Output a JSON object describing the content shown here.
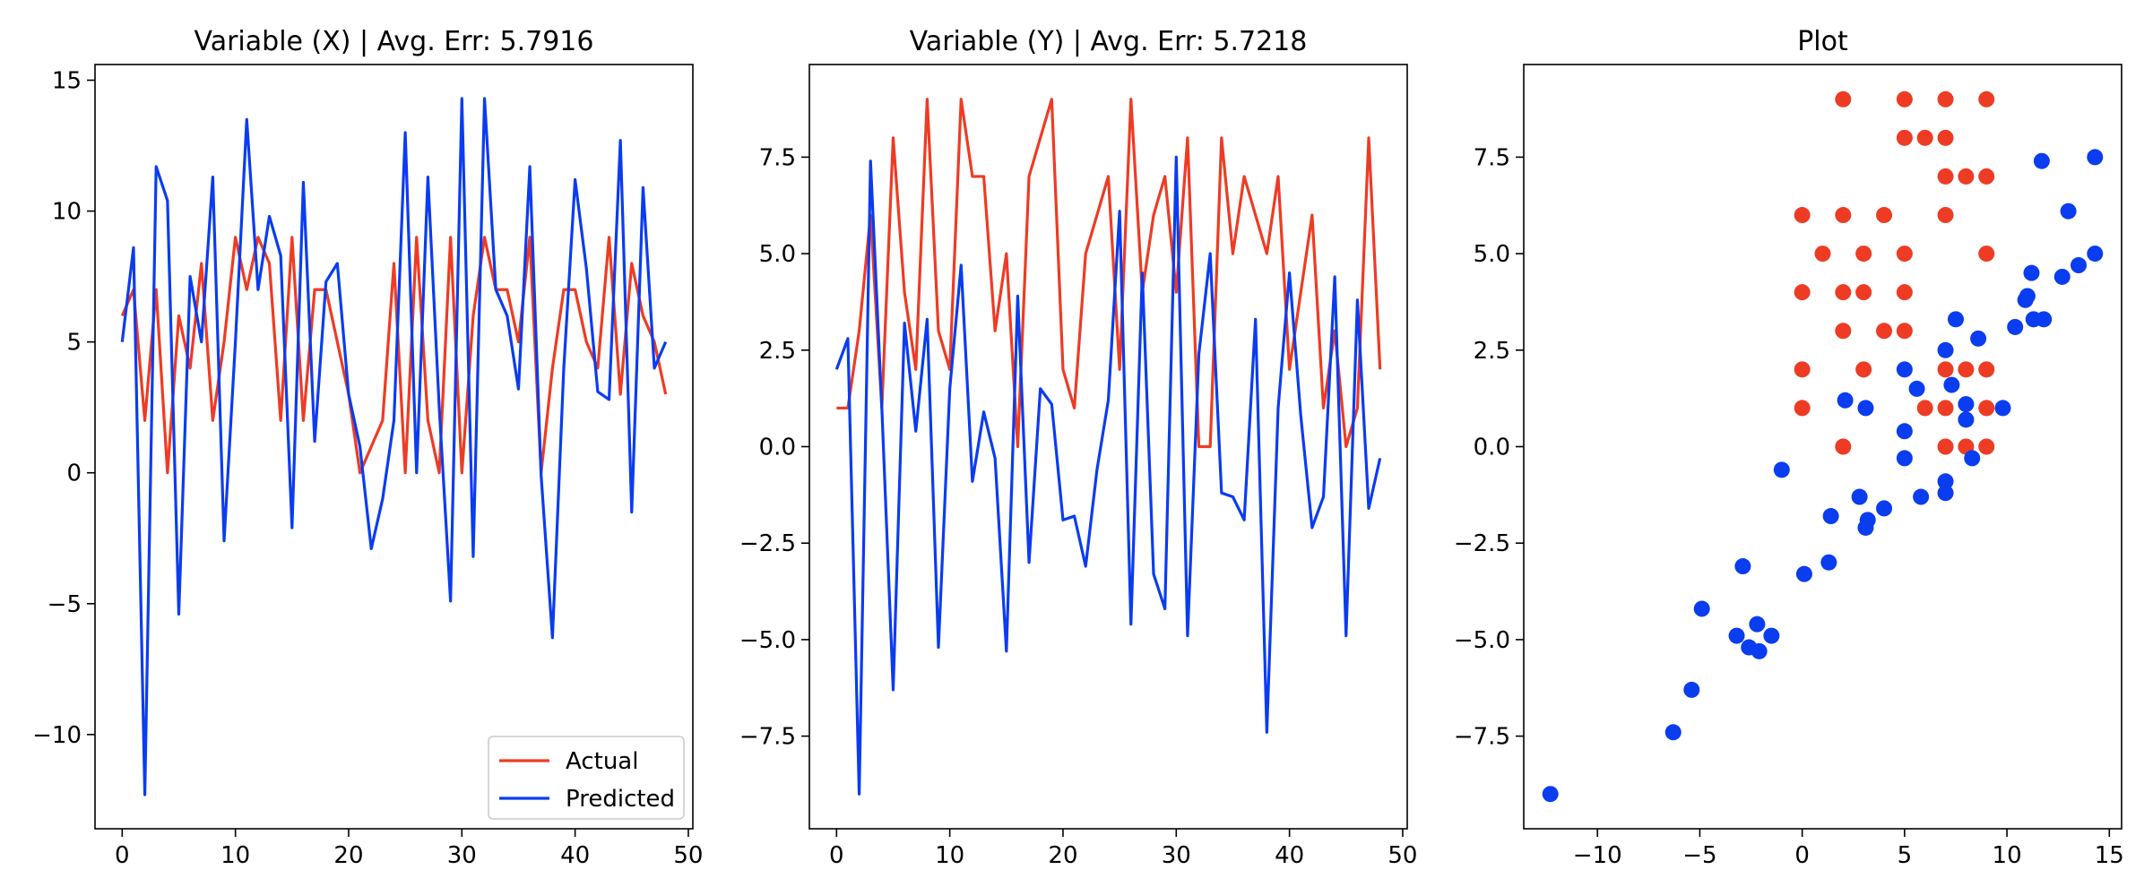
{
  "chart_data": [
    {
      "type": "line",
      "title": "Variable (X) | Avg. Err: 5.7916",
      "xlabel": "",
      "ylabel": "",
      "xlim": [
        -2.4,
        50.4
      ],
      "ylim": [
        -13.6,
        15.6
      ],
      "xticks": [
        0,
        10,
        20,
        30,
        40,
        50
      ],
      "yticks": [
        -10,
        -5,
        0,
        5,
        10,
        15
      ],
      "legend": "lower-right",
      "grid": false,
      "x": [
        0,
        1,
        2,
        3,
        4,
        5,
        6,
        7,
        8,
        9,
        10,
        11,
        12,
        13,
        14,
        15,
        16,
        17,
        18,
        19,
        20,
        21,
        22,
        23,
        24,
        25,
        26,
        27,
        28,
        29,
        30,
        31,
        32,
        33,
        34,
        35,
        36,
        37,
        38,
        39,
        40,
        41,
        42,
        43,
        44,
        45,
        46,
        47,
        48
      ],
      "series": [
        {
          "name": "Actual",
          "color": "#EE3B24",
          "values": [
            6,
            7,
            2,
            7,
            0,
            6,
            4,
            8,
            2,
            5,
            9,
            7,
            9,
            8,
            2,
            9,
            2,
            7,
            7,
            5,
            3,
            0,
            1,
            2,
            8,
            0,
            9,
            2,
            0,
            9,
            0,
            6,
            9,
            7,
            7,
            5,
            9,
            0,
            4,
            7,
            7,
            5,
            4,
            9,
            3,
            8,
            6,
            5,
            3
          ]
        },
        {
          "name": "Predicted",
          "color": "#0A3CF0",
          "values": [
            5,
            8.6,
            -12.3,
            11.7,
            10.4,
            -5.4,
            7.5,
            5,
            11.3,
            -2.6,
            5,
            13.5,
            7,
            9.8,
            8.3,
            -2.1,
            11.1,
            1.2,
            7.3,
            8,
            3,
            1,
            -2.9,
            -1,
            2,
            13,
            0,
            11.3,
            2.5,
            -4.9,
            14.3,
            -3.2,
            14.3,
            7,
            6,
            3.2,
            11.7,
            -0.1,
            -6.3,
            4,
            11.2,
            7.8,
            3.1,
            2.8,
            12.7,
            -1.5,
            10.9,
            4,
            5
          ]
        }
      ]
    },
    {
      "type": "line",
      "title": "Variable (Y) | Avg. Err: 5.7218",
      "xlabel": "",
      "ylabel": "",
      "xlim": [
        -2.4,
        50.4
      ],
      "ylim": [
        -9.9,
        9.9
      ],
      "xticks": [
        0,
        10,
        20,
        30,
        40,
        50
      ],
      "yticks": [
        -7.5,
        -5.0,
        -2.5,
        0.0,
        2.5,
        5.0,
        7.5
      ],
      "ytick_labels": [
        "−7.5",
        "−5.0",
        "−2.5",
        "0.0",
        "2.5",
        "5.0",
        "7.5"
      ],
      "grid": false,
      "x": [
        0,
        1,
        2,
        3,
        4,
        5,
        6,
        7,
        8,
        9,
        10,
        11,
        12,
        13,
        14,
        15,
        16,
        17,
        18,
        19,
        20,
        21,
        22,
        23,
        24,
        25,
        26,
        27,
        28,
        29,
        30,
        31,
        32,
        33,
        34,
        35,
        36,
        37,
        38,
        39,
        40,
        41,
        42,
        43,
        44,
        45,
        46,
        47,
        48
      ],
      "series": [
        {
          "color": "#EE3B24",
          "values": [
            1,
            1,
            3,
            6,
            1,
            8,
            4,
            2,
            9,
            3,
            2,
            9,
            7,
            7,
            3,
            5,
            0,
            7,
            8,
            9,
            2,
            1,
            5,
            6,
            7,
            2,
            9,
            4,
            6,
            7,
            4,
            8,
            0,
            0,
            8,
            5,
            7,
            6,
            5,
            7,
            2,
            4,
            6,
            1,
            3,
            0,
            1,
            8,
            2
          ]
        },
        {
          "color": "#0A3CF0",
          "values": [
            2,
            2.8,
            -9,
            7.4,
            1,
            -6.3,
            3.2,
            0.4,
            3.3,
            -5.2,
            1.5,
            4.7,
            -0.9,
            0.9,
            -0.3,
            -5.3,
            3.9,
            -3,
            1.5,
            1.1,
            -1.9,
            -1.8,
            -3.1,
            -0.6,
            1.2,
            6.1,
            -4.6,
            4.5,
            -3.3,
            -4.2,
            7.5,
            -4.9,
            2.4,
            5,
            -1.2,
            -1.3,
            -1.9,
            3.3,
            -7.4,
            1,
            4.5,
            0.8,
            -2.1,
            -1.3,
            4.4,
            -4.9,
            3.8,
            -1.6,
            -0.3
          ]
        }
      ]
    },
    {
      "type": "scatter",
      "title": "Plot",
      "xlabel": "",
      "ylabel": "",
      "xlim": [
        -13.6,
        15.6
      ],
      "ylim": [
        -9.9,
        9.9
      ],
      "xticks": [
        -10,
        -5,
        0,
        5,
        10,
        15
      ],
      "xtick_labels": [
        "−10",
        "−5",
        "0",
        "5",
        "10",
        "15"
      ],
      "yticks": [
        -7.5,
        -5.0,
        -2.5,
        0.0,
        2.5,
        5.0,
        7.5
      ],
      "ytick_labels": [
        "−7.5",
        "−5.0",
        "−2.5",
        "0.0",
        "2.5",
        "5.0",
        "7.5"
      ],
      "grid": false,
      "series": [
        {
          "color": "#EE3B24",
          "points": [
            [
              2,
              9
            ],
            [
              5,
              9
            ],
            [
              7,
              9
            ],
            [
              9,
              9
            ],
            [
              5,
              8
            ],
            [
              6,
              8
            ],
            [
              7,
              8
            ],
            [
              7,
              7
            ],
            [
              8,
              7
            ],
            [
              9,
              7
            ],
            [
              0,
              6
            ],
            [
              2,
              6
            ],
            [
              4,
              6
            ],
            [
              7,
              6
            ],
            [
              1,
              5
            ],
            [
              3,
              5
            ],
            [
              5,
              5
            ],
            [
              9,
              5
            ],
            [
              0,
              4
            ],
            [
              2,
              4
            ],
            [
              3,
              4
            ],
            [
              5,
              4
            ],
            [
              2,
              3
            ],
            [
              4,
              3
            ],
            [
              5,
              3
            ],
            [
              0,
              2
            ],
            [
              3,
              2
            ],
            [
              7,
              2
            ],
            [
              8,
              2
            ],
            [
              9,
              2
            ],
            [
              0,
              1
            ],
            [
              6,
              1
            ],
            [
              7,
              1
            ],
            [
              9,
              1
            ],
            [
              2,
              0
            ],
            [
              7,
              0
            ],
            [
              8,
              0
            ],
            [
              9,
              0
            ]
          ]
        },
        {
          "color": "#0A3CF0",
          "points": [
            [
              -12.3,
              -9
            ],
            [
              -6.3,
              -7.4
            ],
            [
              -5.4,
              -6.3
            ],
            [
              -4.9,
              -4.2
            ],
            [
              -3.2,
              -4.9
            ],
            [
              -2.9,
              -3.1
            ],
            [
              -2.6,
              -5.2
            ],
            [
              -2.1,
              -5.3
            ],
            [
              -2.2,
              -4.6
            ],
            [
              -1.5,
              -4.9
            ],
            [
              -1,
              -0.6
            ],
            [
              0.1,
              -3.3
            ],
            [
              1.3,
              -3
            ],
            [
              1.4,
              -1.8
            ],
            [
              2.1,
              1.2
            ],
            [
              2.8,
              -1.3
            ],
            [
              3.1,
              -2.1
            ],
            [
              3.2,
              -1.9
            ],
            [
              3.1,
              1
            ],
            [
              4,
              -1.6
            ],
            [
              5,
              0.4
            ],
            [
              5,
              -0.3
            ],
            [
              5,
              2
            ],
            [
              5.6,
              1.5
            ],
            [
              5.8,
              -1.3
            ],
            [
              7,
              2.5
            ],
            [
              7,
              -0.9
            ],
            [
              7,
              -1.2
            ],
            [
              7.3,
              1.6
            ],
            [
              7.5,
              3.3
            ],
            [
              8,
              1.1
            ],
            [
              8,
              0.7
            ],
            [
              8.3,
              -0.3
            ],
            [
              8.6,
              2.8
            ],
            [
              9.8,
              1
            ],
            [
              10.4,
              3.1
            ],
            [
              10.9,
              3.8
            ],
            [
              11,
              3.9
            ],
            [
              11.2,
              4.5
            ],
            [
              11.3,
              3.3
            ],
            [
              11.7,
              7.4
            ],
            [
              11.8,
              3.3
            ],
            [
              12.7,
              4.4
            ],
            [
              13,
              6.1
            ],
            [
              13.5,
              4.7
            ],
            [
              14.3,
              5
            ],
            [
              14.3,
              7.5
            ]
          ]
        }
      ]
    }
  ]
}
